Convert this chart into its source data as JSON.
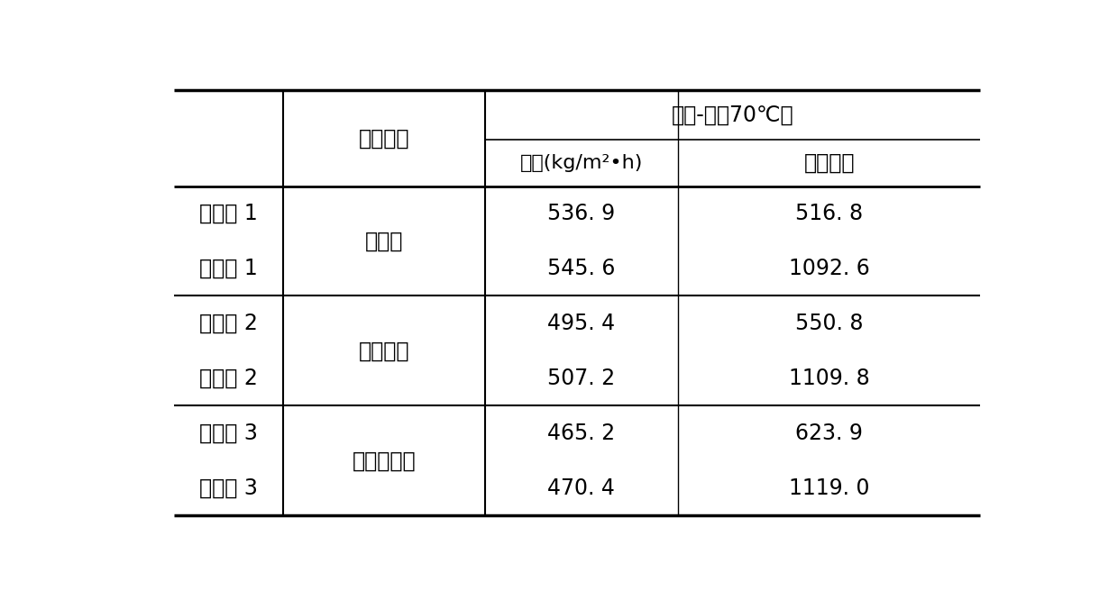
{
  "bg_color": "#ffffff",
  "text_color": "#000000",
  "font_size": 17,
  "header_font_size": 17,
  "col2_header": "超滤底膜",
  "col3_header": "通量(kg/m²•h)",
  "col4_header": "分离因子",
  "top_span_header": "乙醇-水（70℃）",
  "rows": [
    {
      "col1": "对比例 1",
      "col3": "536. 9",
      "col4": "516. 8"
    },
    {
      "col1": "实施例 1",
      "col3": "545. 6",
      "col4": "1092. 6"
    },
    {
      "col1": "对比例 2",
      "col3": "495. 4",
      "col4": "550. 8"
    },
    {
      "col1": "实施例 2",
      "col3": "507. 2",
      "col4": "1109. 8"
    },
    {
      "col1": "实施例 3",
      "col3": "465. 2",
      "col4": "623. 9"
    },
    {
      "col1": "实施例 3",
      "col3": "470. 4",
      "col4": "1119. 0"
    }
  ],
  "group_labels": [
    "聚砒膜",
    "聚醚砒膜",
    "聚丙烯腻膜"
  ],
  "figsize": [
    12.4,
    6.66
  ],
  "dpi": 100
}
